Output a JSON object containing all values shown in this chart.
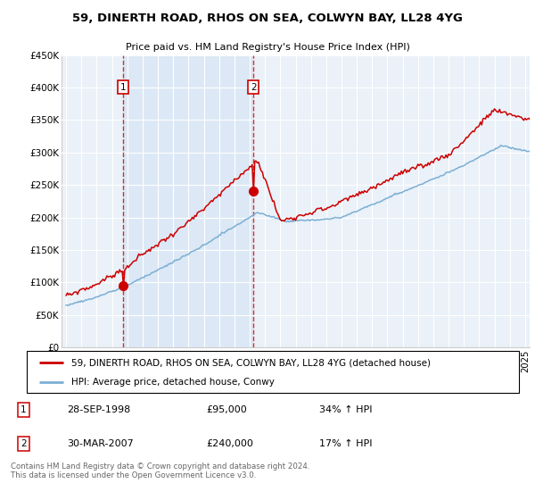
{
  "title": "59, DINERTH ROAD, RHOS ON SEA, COLWYN BAY, LL28 4YG",
  "subtitle": "Price paid vs. HM Land Registry's House Price Index (HPI)",
  "legend_line1": "59, DINERTH ROAD, RHOS ON SEA, COLWYN BAY, LL28 4YG (detached house)",
  "legend_line2": "HPI: Average price, detached house, Conwy",
  "purchase1_label": "1",
  "purchase1_date": "28-SEP-1998",
  "purchase1_price": "£95,000",
  "purchase1_hpi": "34% ↑ HPI",
  "purchase2_label": "2",
  "purchase2_date": "30-MAR-2007",
  "purchase2_price": "£240,000",
  "purchase2_hpi": "17% ↑ HPI",
  "footer": "Contains HM Land Registry data © Crown copyright and database right 2024.\nThis data is licensed under the Open Government Licence v3.0.",
  "red_color": "#cc0000",
  "blue_color": "#7bafd4",
  "shade_color": "#dce8f5",
  "bg_color": "#eaf1f8",
  "grid_color": "#cccccc",
  "ylim": [
    0,
    450000
  ],
  "yticks": [
    0,
    50000,
    100000,
    150000,
    200000,
    250000,
    300000,
    350000,
    400000,
    450000
  ],
  "ytick_labels": [
    "£0",
    "£50K",
    "£100K",
    "£150K",
    "£200K",
    "£250K",
    "£300K",
    "£350K",
    "£400K",
    "£450K"
  ],
  "purchase1_x": 1998.74,
  "purchase1_y": 95000,
  "purchase2_x": 2007.24,
  "purchase2_y": 240000,
  "x_min": 1994.7,
  "x_max": 2025.3
}
